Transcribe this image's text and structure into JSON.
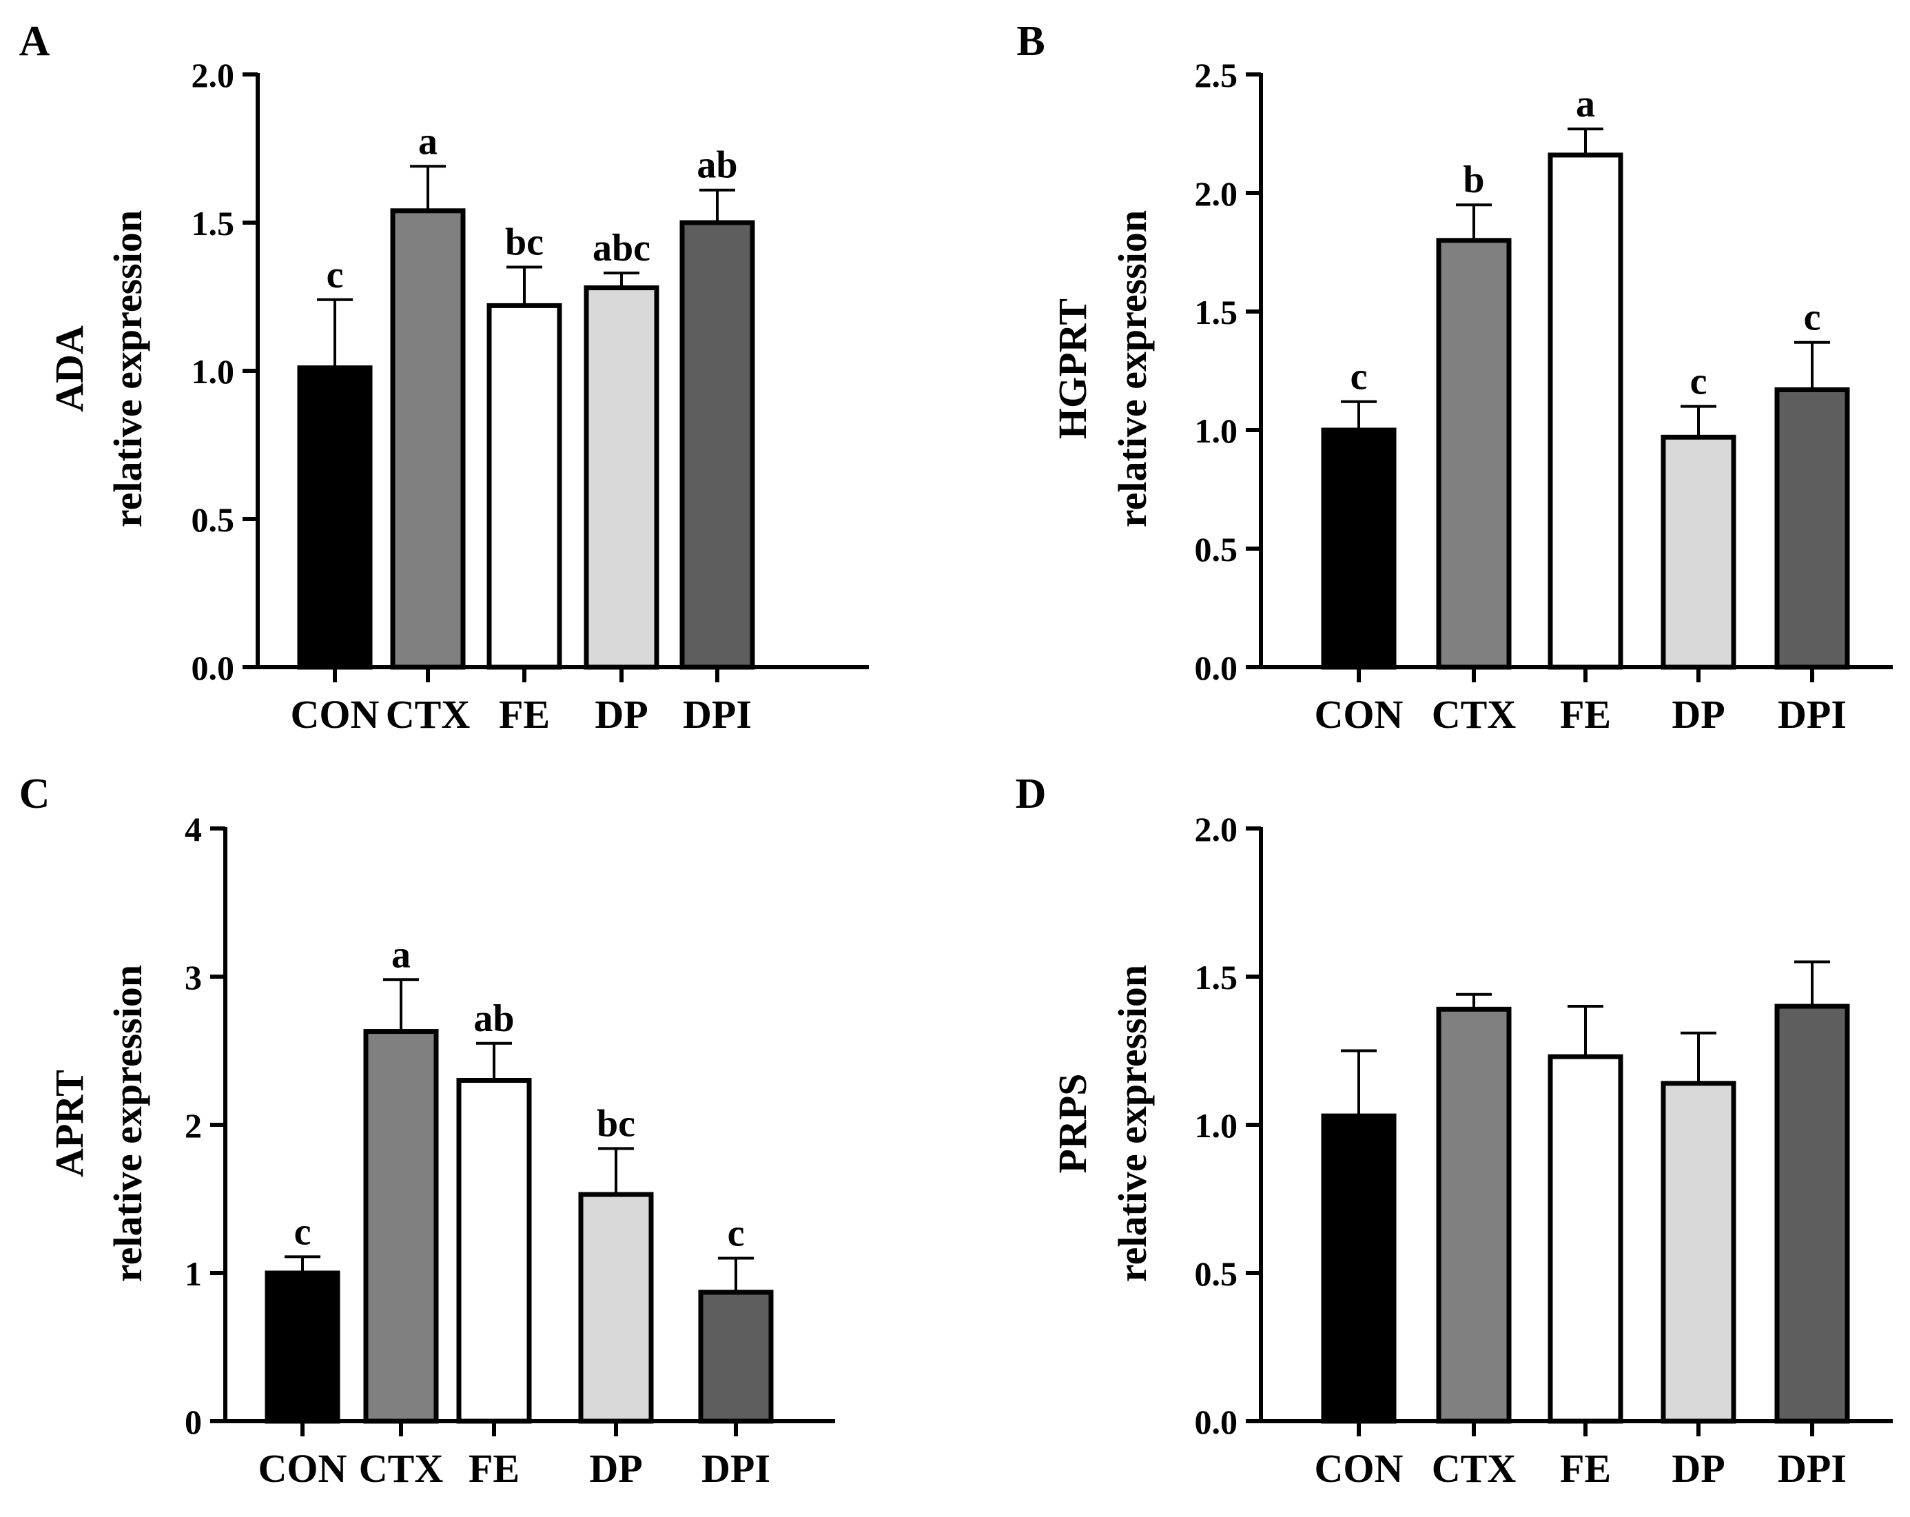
{
  "colors": {
    "CON": "#000000",
    "CTX": "#808080",
    "FE": "#ffffff",
    "DP": "#d9d9d9",
    "DPI": "#5e5e5e",
    "axis": "#000000"
  },
  "chart_data": [
    {
      "panel": "A",
      "type": "bar",
      "title": "",
      "ylabel_gene": "ADA",
      "ylabel": "relative expression",
      "xlabel": "",
      "categories": [
        "CON",
        "CTX",
        "FE",
        "DP",
        "DPI"
      ],
      "values": [
        1.01,
        1.54,
        1.22,
        1.28,
        1.5
      ],
      "errors": [
        0.23,
        0.15,
        0.13,
        0.05,
        0.11
      ],
      "annotations": [
        "c",
        "a",
        "bc",
        "abc",
        "ab"
      ],
      "ylim": [
        0,
        2.0
      ],
      "yticks": [
        "0.0",
        "0.5",
        "1.0",
        "1.5",
        "2.0"
      ]
    },
    {
      "panel": "B",
      "type": "bar",
      "title": "",
      "ylabel_gene": "HGPRT",
      "ylabel": "relative expression",
      "xlabel": "",
      "categories": [
        "CON",
        "CTX",
        "FE",
        "DP",
        "DPI"
      ],
      "values": [
        1.0,
        1.8,
        2.16,
        0.97,
        1.17
      ],
      "errors": [
        0.12,
        0.15,
        0.11,
        0.13,
        0.2
      ],
      "annotations": [
        "c",
        "b",
        "a",
        "c",
        "c"
      ],
      "ylim": [
        0,
        2.5
      ],
      "yticks": [
        "0.0",
        "0.5",
        "1.0",
        "1.5",
        "2.0",
        "2.5"
      ]
    },
    {
      "panel": "C",
      "type": "bar",
      "title": "",
      "ylabel_gene": "APRT",
      "ylabel": "relative expression",
      "xlabel": "",
      "categories": [
        "CON",
        "CTX",
        "FE",
        "DP",
        "DPI"
      ],
      "values": [
        1.0,
        2.63,
        2.3,
        1.53,
        0.87
      ],
      "errors": [
        0.11,
        0.35,
        0.25,
        0.31,
        0.23
      ],
      "annotations": [
        "c",
        "a",
        "ab",
        "bc",
        "c"
      ],
      "ylim": [
        0,
        4
      ],
      "yticks": [
        "0",
        "1",
        "2",
        "3",
        "4"
      ]
    },
    {
      "panel": "D",
      "type": "bar",
      "title": "",
      "ylabel_gene": "PRPS",
      "ylabel": "relative expression",
      "xlabel": "",
      "categories": [
        "CON",
        "CTX",
        "FE",
        "DP",
        "DPI"
      ],
      "values": [
        1.03,
        1.39,
        1.23,
        1.14,
        1.4
      ],
      "errors": [
        0.22,
        0.05,
        0.17,
        0.17,
        0.15
      ],
      "annotations": [
        "",
        "",
        "",
        "",
        ""
      ],
      "ylim": [
        0,
        2.0
      ],
      "yticks": [
        "0.0",
        "0.5",
        "1.0",
        "1.5",
        "2.0"
      ]
    }
  ]
}
